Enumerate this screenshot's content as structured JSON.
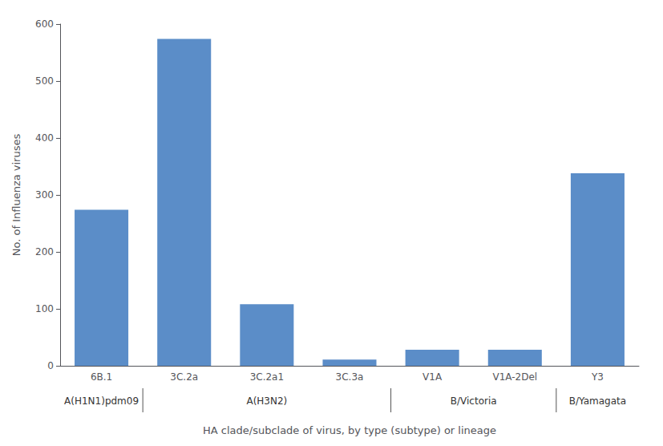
{
  "chart_data": {
    "type": "bar",
    "categories": [
      "6B.1",
      "3C.2a",
      "3C.2a1",
      "3C.3a",
      "V1A",
      "V1A-2Del",
      "Y3"
    ],
    "values": [
      274,
      574,
      108,
      11,
      28,
      28,
      338
    ],
    "color": "#5b8dc8",
    "xlabel": "HA clade/subclade of virus, by type (subtype) or lineage",
    "ylabel": "No. of Influenza viruses",
    "ylim": [
      0,
      600
    ],
    "yticks": [
      0,
      100,
      200,
      300,
      400,
      500,
      600
    ],
    "grid": false,
    "groups": [
      {
        "label": "A(H1N1)pdm09",
        "categories": [
          "6B.1"
        ]
      },
      {
        "label": "A(H3N2)",
        "categories": [
          "3C.2a",
          "3C.2a1",
          "3C.3a"
        ]
      },
      {
        "label": "B/Victoria",
        "categories": [
          "V1A",
          "V1A-2Del"
        ]
      },
      {
        "label": "B/Yamagata",
        "categories": [
          "Y3"
        ]
      }
    ]
  }
}
